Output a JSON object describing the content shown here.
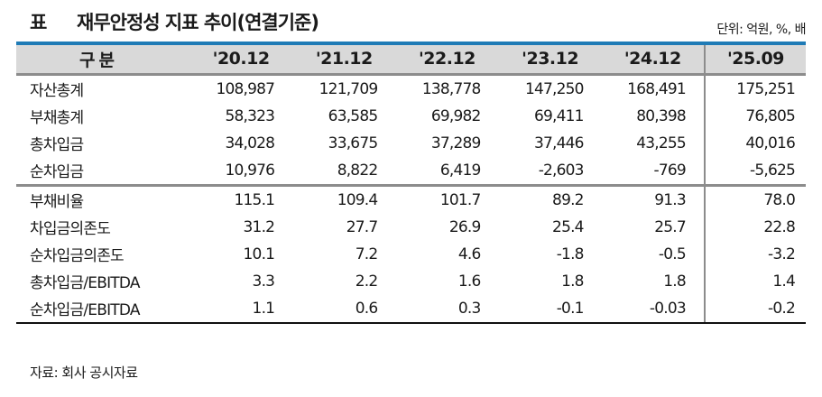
{
  "title": {
    "mark": "표",
    "text": "재무안정성 지표 추이(연결기준)"
  },
  "unit": "단위: 억원, %, 배",
  "table": {
    "header": [
      "구분",
      "'20.12",
      "'21.12",
      "'22.12",
      "'23.12",
      "'24.12",
      "'25.09"
    ],
    "rows": [
      {
        "label": "자산총계",
        "values": [
          "108,987",
          "121,709",
          "138,778",
          "147,250",
          "168,491",
          "175,251"
        ]
      },
      {
        "label": "부채총계",
        "values": [
          "58,323",
          "63,585",
          "69,982",
          "69,411",
          "80,398",
          "76,805"
        ]
      },
      {
        "label": "총차입금",
        "values": [
          "34,028",
          "33,675",
          "37,289",
          "37,446",
          "43,255",
          "40,016"
        ]
      },
      {
        "label": "순차입금",
        "values": [
          "10,976",
          "8,822",
          "6,419",
          "-2,603",
          "-769",
          "-5,625"
        ]
      },
      {
        "label": "부채비율",
        "values": [
          "115.1",
          "109.4",
          "101.7",
          "89.2",
          "91.3",
          "78.0"
        ]
      },
      {
        "label": "차입금의존도",
        "values": [
          "31.2",
          "27.7",
          "26.9",
          "25.4",
          "25.7",
          "22.8"
        ]
      },
      {
        "label": "순차입금의존도",
        "values": [
          "10.1",
          "7.2",
          "4.6",
          "-1.8",
          "-0.5",
          "-3.2"
        ]
      },
      {
        "label": "총차입금/EBITDA",
        "values": [
          "3.3",
          "2.2",
          "1.6",
          "1.8",
          "1.8",
          "1.4"
        ]
      },
      {
        "label": "순차입금/EBITDA",
        "values": [
          "1.1",
          "0.6",
          "0.3",
          "-0.1",
          "-0.03",
          "-0.2"
        ]
      }
    ]
  },
  "source": "자료: 회사 공시자료",
  "colors": {
    "header_top_border": "#1f7bb6",
    "header_bg": "#d9d9d9",
    "rule": "#8c8c8c"
  }
}
